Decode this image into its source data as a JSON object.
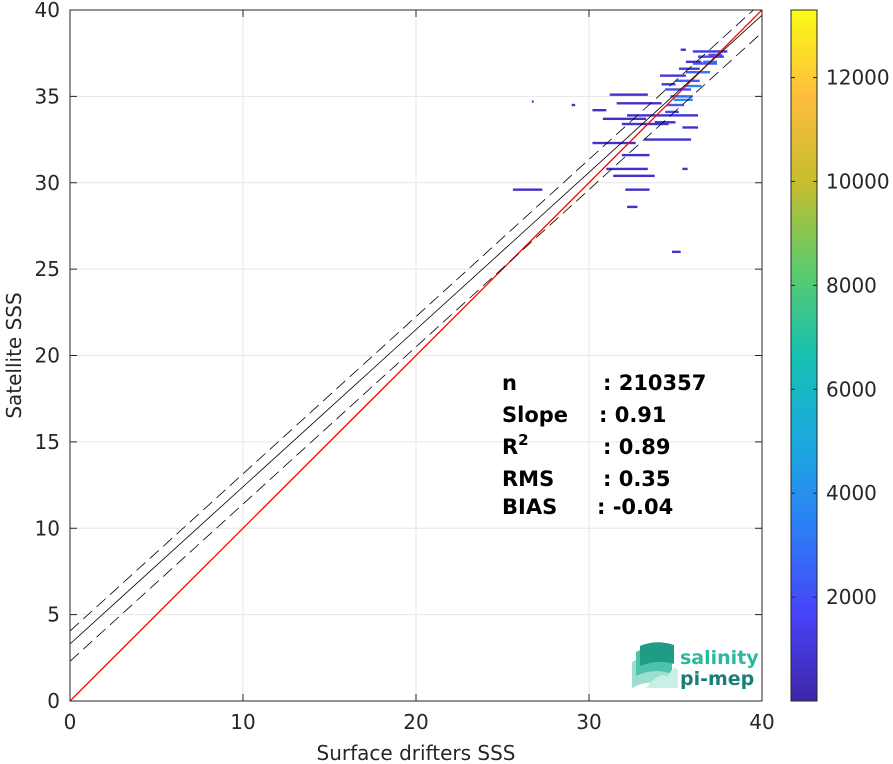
{
  "chart_data": {
    "type": "scatter",
    "subtype": "2d-density-histogram",
    "xlabel": "Surface drifters SSS",
    "ylabel": "Satellite SSS",
    "xlim": [
      0,
      40
    ],
    "ylim": [
      0,
      40
    ],
    "x_ticks": [
      "0",
      "10",
      "20",
      "30",
      "40"
    ],
    "y_ticks": [
      "0",
      "5",
      "10",
      "15",
      "20",
      "25",
      "30",
      "35",
      "40"
    ],
    "grid": true,
    "colorbar": {
      "colormap": "parula",
      "range": [
        0,
        13300
      ],
      "ticks": [
        "2000",
        "4000",
        "6000",
        "8000",
        "10000",
        "12000"
      ],
      "colors": [
        "#3e26a8",
        "#4743f8",
        "#2d7ef6",
        "#1ca9df",
        "#16c0b2",
        "#5ecb6a",
        "#c6bd2f",
        "#fdbd3c",
        "#f9fb15"
      ]
    },
    "lines": [
      {
        "name": "identity",
        "slope": 1.0,
        "intercept": 0.0,
        "color": "#ff0000",
        "style": "solid"
      },
      {
        "name": "regression",
        "slope": 0.91,
        "intercept": 3.3,
        "color": "#000000",
        "style": "solid"
      },
      {
        "name": "upper-bound",
        "slope": 0.91,
        "intercept": 4.05,
        "color": "#000000",
        "style": "dashed"
      },
      {
        "name": "lower-bound",
        "slope": 0.91,
        "intercept": 2.3,
        "color": "#000000",
        "style": "dashed"
      }
    ],
    "density_segments": [
      {
        "x1": 25.6,
        "x2": 27.3,
        "y": 29.6,
        "level": 0.05
      },
      {
        "x1": 26.7,
        "x2": 26.8,
        "y": 34.7,
        "level": 0.05
      },
      {
        "x1": 29.0,
        "x2": 29.2,
        "y": 34.5,
        "level": 0.05
      },
      {
        "x1": 30.2,
        "x2": 31.0,
        "y": 34.2,
        "level": 0.05
      },
      {
        "x1": 31.2,
        "x2": 33.4,
        "y": 35.1,
        "level": 0.05
      },
      {
        "x1": 31.6,
        "x2": 34.2,
        "y": 34.6,
        "level": 0.06
      },
      {
        "x1": 30.8,
        "x2": 33.3,
        "y": 33.7,
        "level": 0.05
      },
      {
        "x1": 31.9,
        "x2": 34.6,
        "y": 33.4,
        "level": 0.06
      },
      {
        "x1": 30.2,
        "x2": 32.7,
        "y": 32.3,
        "level": 0.05
      },
      {
        "x1": 31.9,
        "x2": 33.5,
        "y": 31.6,
        "level": 0.05
      },
      {
        "x1": 31.0,
        "x2": 33.4,
        "y": 30.8,
        "level": 0.05
      },
      {
        "x1": 31.4,
        "x2": 33.8,
        "y": 30.4,
        "level": 0.05
      },
      {
        "x1": 32.1,
        "x2": 33.5,
        "y": 29.6,
        "level": 0.05
      },
      {
        "x1": 32.2,
        "x2": 32.8,
        "y": 28.6,
        "level": 0.05
      },
      {
        "x1": 34.8,
        "x2": 35.3,
        "y": 26.0,
        "level": 0.05
      },
      {
        "x1": 35.4,
        "x2": 35.7,
        "y": 30.8,
        "level": 0.05
      },
      {
        "x1": 33.2,
        "x2": 35.9,
        "y": 32.5,
        "level": 0.06
      },
      {
        "x1": 32.2,
        "x2": 36.3,
        "y": 33.9,
        "level": 0.06
      },
      {
        "x1": 35.4,
        "x2": 36.3,
        "y": 33.2,
        "level": 0.05
      },
      {
        "x1": 34.4,
        "x2": 35.2,
        "y": 34.1,
        "level": 0.15
      },
      {
        "x1": 34.5,
        "x2": 35.5,
        "y": 34.5,
        "level": 0.18
      },
      {
        "x1": 34.7,
        "x2": 36.0,
        "y": 35.0,
        "level": 0.2
      },
      {
        "x1": 34.4,
        "x2": 35.9,
        "y": 35.4,
        "level": 0.15
      },
      {
        "x1": 35.0,
        "x2": 36.4,
        "y": 35.9,
        "level": 0.2
      },
      {
        "x1": 35.6,
        "x2": 36.9,
        "y": 36.4,
        "level": 0.18
      },
      {
        "x1": 36.0,
        "x2": 37.4,
        "y": 36.9,
        "level": 0.18
      },
      {
        "x1": 36.3,
        "x2": 37.8,
        "y": 37.3,
        "level": 0.12
      },
      {
        "x1": 36.0,
        "x2": 38.0,
        "y": 37.6,
        "level": 0.08
      },
      {
        "x1": 35.6,
        "x2": 36.5,
        "y": 37.0,
        "level": 0.06
      },
      {
        "x1": 35.2,
        "x2": 36.4,
        "y": 36.6,
        "level": 0.08
      },
      {
        "x1": 34.1,
        "x2": 35.6,
        "y": 36.2,
        "level": 0.08
      },
      {
        "x1": 35.3,
        "x2": 35.6,
        "y": 37.7,
        "level": 0.05
      },
      {
        "x1": 34.2,
        "x2": 35.0,
        "y": 35.7,
        "level": 0.08
      },
      {
        "x1": 33.8,
        "x2": 35.0,
        "y": 33.5,
        "level": 0.06
      },
      {
        "x1": 34.9,
        "x2": 36.0,
        "y": 34.8,
        "level": 0.3
      },
      {
        "x1": 35.5,
        "x2": 36.5,
        "y": 35.6,
        "level": 0.28
      },
      {
        "x1": 36.2,
        "x2": 37.0,
        "y": 36.4,
        "level": 0.25
      },
      {
        "x1": 36.6,
        "x2": 37.4,
        "y": 37.0,
        "level": 0.22
      },
      {
        "x1": 36.9,
        "x2": 37.7,
        "y": 37.4,
        "level": 0.15
      }
    ]
  },
  "stats": [
    {
      "label": "n",
      "value": ": 210357"
    },
    {
      "label": "Slope",
      "value": ": 0.91"
    },
    {
      "label": "R",
      "sup": "2",
      "value": ": 0.89"
    },
    {
      "label": "RMS",
      "value": ": 0.35"
    },
    {
      "label": "BIAS",
      "value": ": -0.04"
    }
  ],
  "logo": {
    "line1": "salinity",
    "line2": "pi-mep"
  }
}
